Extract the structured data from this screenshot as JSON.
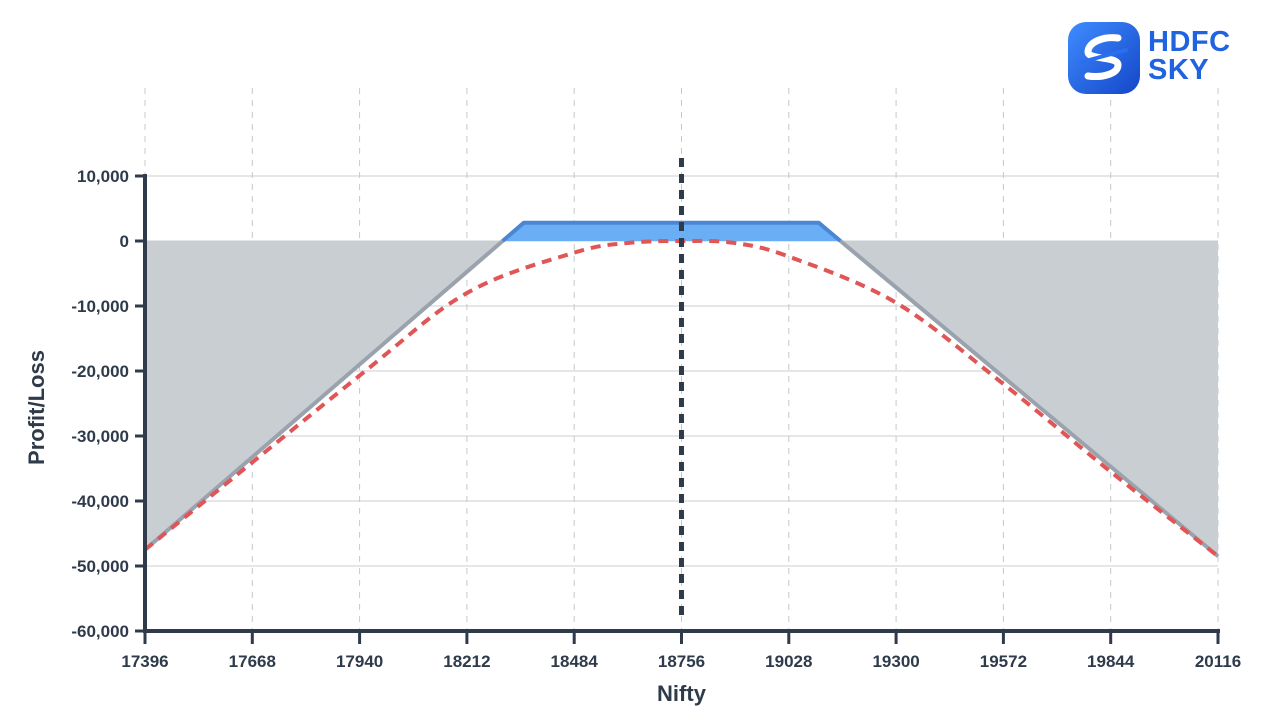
{
  "brand": {
    "line1": "HDFC",
    "line2": "SKY",
    "logo_icon": "hdfc-sky-s-logo-icon",
    "color": "#1f63e0"
  },
  "chart_data": {
    "type": "line",
    "title": "",
    "xlabel": "Nifty",
    "ylabel": "Profit/Loss",
    "xlim": [
      17396,
      20116
    ],
    "ylim": [
      -60000,
      10000
    ],
    "x_ticks": [
      17396,
      17668,
      17940,
      18212,
      18484,
      18756,
      19028,
      19300,
      19572,
      19844,
      20116
    ],
    "y_ticks": [
      10000,
      0,
      -10000,
      -20000,
      -30000,
      -40000,
      -50000,
      -60000
    ],
    "y_tick_labels": [
      "10,000",
      "0",
      "-10,000",
      "-20,000",
      "-30,000",
      "-40,000",
      "-50,000",
      "-60,000"
    ],
    "grid": true,
    "current_spot": 18756,
    "series": [
      {
        "style": "solid",
        "color": "#9aa3ad",
        "profit_fill": "#6aaef5",
        "profit_edge": "#4a86d4",
        "loss_fill": "#c9ced3",
        "points": [
          {
            "x": 17396,
            "y": -47500
          },
          {
            "x": 18356,
            "y": 2800
          },
          {
            "x": 19104,
            "y": 2800
          },
          {
            "x": 19159,
            "y": 0
          },
          {
            "x": 20116,
            "y": -48500
          }
        ]
      },
      {
        "style": "dashed",
        "color": "#e05555",
        "points": [
          {
            "x": 17396,
            "y": -47500
          },
          {
            "x": 17940,
            "y": -20700
          },
          {
            "x": 18212,
            "y": -8000
          },
          {
            "x": 18484,
            "y": -1800
          },
          {
            "x": 18620,
            "y": -300
          },
          {
            "x": 18756,
            "y": 0
          },
          {
            "x": 18890,
            "y": -300
          },
          {
            "x": 19028,
            "y": -2400
          },
          {
            "x": 19300,
            "y": -9500
          },
          {
            "x": 19572,
            "y": -22000
          },
          {
            "x": 19844,
            "y": -35500
          },
          {
            "x": 20116,
            "y": -48500
          }
        ]
      }
    ]
  }
}
